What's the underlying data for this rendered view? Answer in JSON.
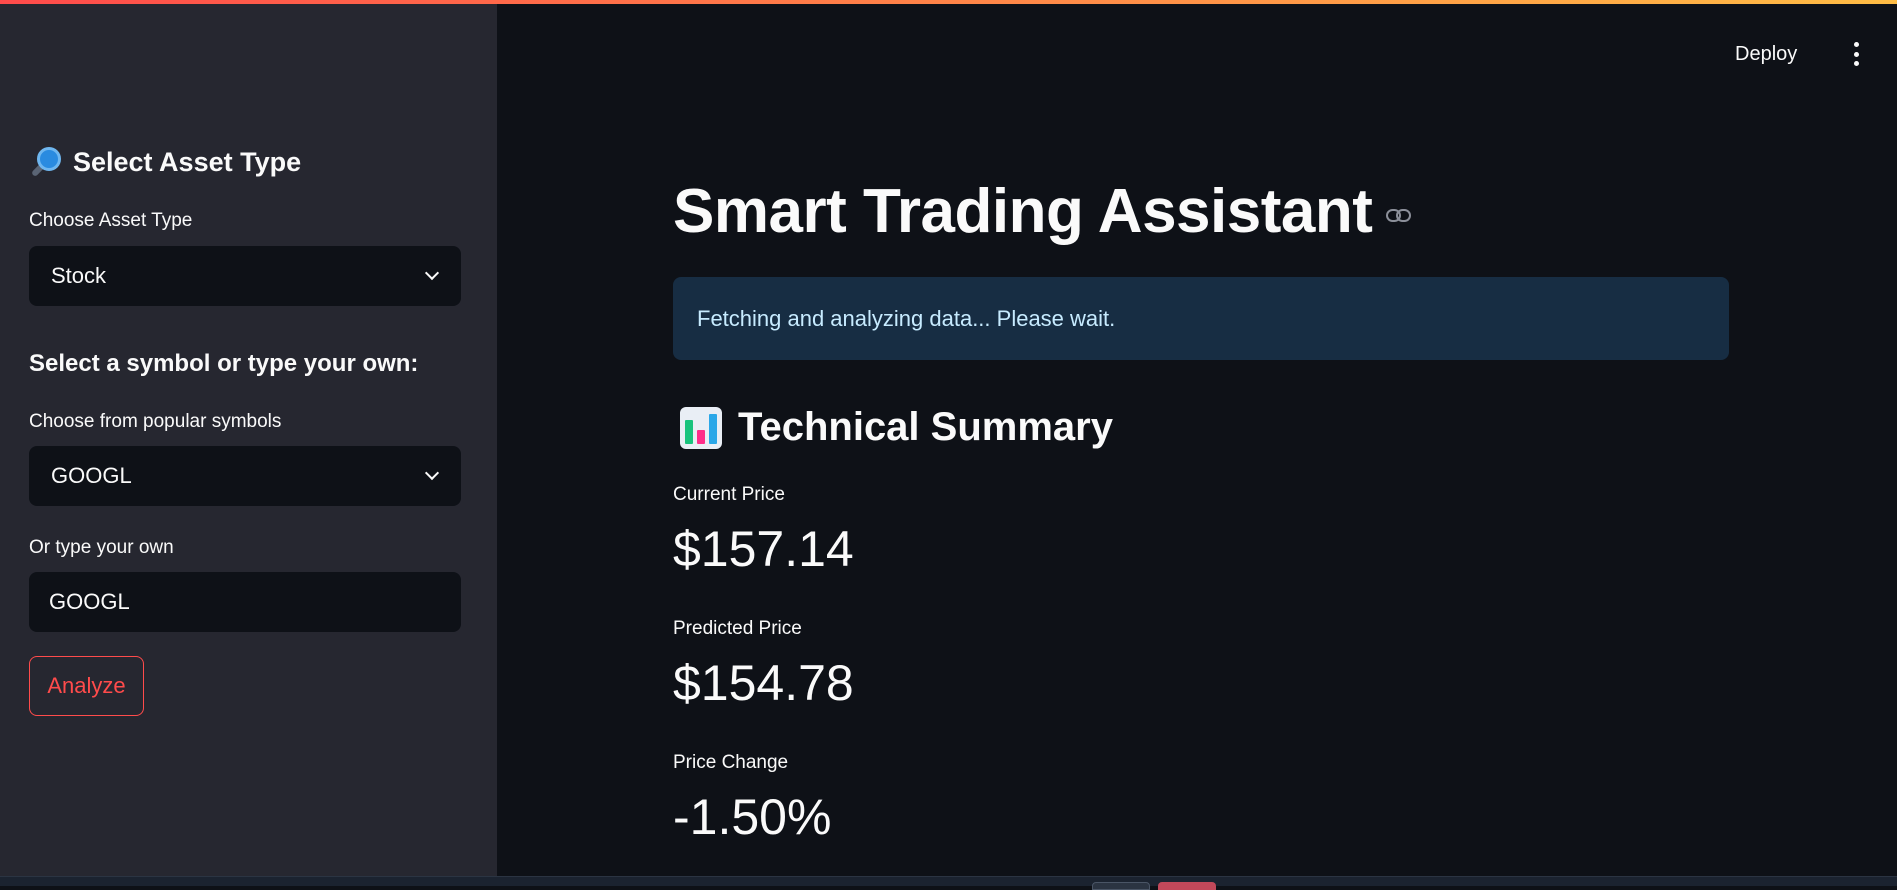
{
  "sidebar": {
    "heading": "Select Asset Type",
    "heading_icon": "magnifying-glass-icon",
    "asset_type_label": "Choose Asset Type",
    "asset_type_value": "Stock",
    "symbol_heading": "Select a symbol or type your own:",
    "popular_label": "Choose from popular symbols",
    "popular_value": "GOOGL",
    "custom_label": "Or type your own",
    "custom_value": "GOOGL",
    "analyze_label": "Analyze"
  },
  "header": {
    "deploy_label": "Deploy",
    "menu_icon": "vertical-ellipsis-icon"
  },
  "main": {
    "title": "Smart Trading Assistant",
    "info_message": "Fetching and analyzing data... Please wait.",
    "section_heading": "Technical Summary",
    "section_icon": "bar-chart-icon",
    "metrics": [
      {
        "label": "Current Price",
        "value": "$157.14"
      },
      {
        "label": "Predicted Price",
        "value": "$154.78"
      },
      {
        "label": "Price Change",
        "value": "-1.50%"
      }
    ]
  },
  "colors": {
    "accent": "#ff4b4b",
    "sidebar_bg": "#262730",
    "main_bg": "#0e1117",
    "info_bg": "#172d43"
  }
}
